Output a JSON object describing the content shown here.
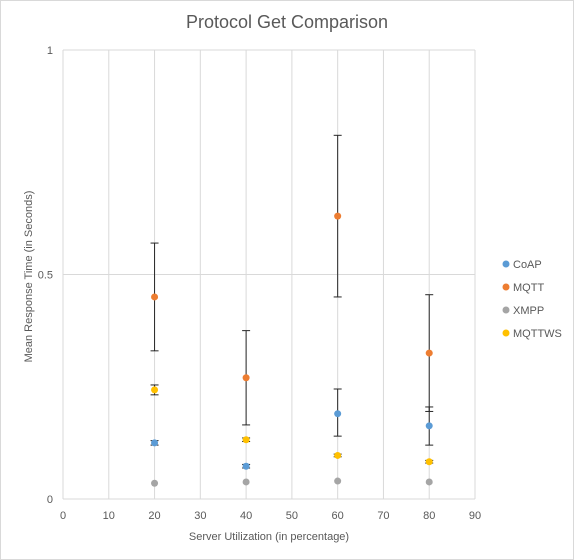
{
  "chart_data": {
    "type": "scatter",
    "title": "Protocol Get Comparison",
    "xlabel": "Server Utilization (in percentage)",
    "ylabel": "Mean Response Time (in Seconds)",
    "xlim": [
      0,
      90
    ],
    "ylim": [
      0,
      1
    ],
    "x_ticks": [
      0,
      10,
      20,
      30,
      40,
      50,
      60,
      70,
      80,
      90
    ],
    "y_ticks": [
      0,
      0.5,
      1
    ],
    "grid": "vertical and horizontal major gridlines",
    "legend_position": "right",
    "error_bars": true,
    "series": [
      {
        "name": "CoAP",
        "color": "#5b9bd5",
        "points": [
          {
            "x": 20,
            "y": 0.125,
            "lo": 0.12,
            "hi": 0.13
          },
          {
            "x": 40,
            "y": 0.073,
            "lo": 0.069,
            "hi": 0.077
          },
          {
            "x": 60,
            "y": 0.19,
            "lo": 0.14,
            "hi": 0.245
          },
          {
            "x": 80,
            "y": 0.163,
            "lo": 0.12,
            "hi": 0.205
          }
        ]
      },
      {
        "name": "MQTT",
        "color": "#ed7d31",
        "points": [
          {
            "x": 20,
            "y": 0.45,
            "lo": 0.33,
            "hi": 0.57
          },
          {
            "x": 40,
            "y": 0.27,
            "lo": 0.165,
            "hi": 0.375
          },
          {
            "x": 60,
            "y": 0.63,
            "lo": 0.45,
            "hi": 0.81
          },
          {
            "x": 80,
            "y": 0.325,
            "lo": 0.195,
            "hi": 0.455
          }
        ]
      },
      {
        "name": "XMPP",
        "color": "#a5a5a5",
        "points": [
          {
            "x": 20,
            "y": 0.035
          },
          {
            "x": 40,
            "y": 0.038
          },
          {
            "x": 60,
            "y": 0.04
          },
          {
            "x": 80,
            "y": 0.038
          }
        ]
      },
      {
        "name": "MQTTWS",
        "color": "#ffc000",
        "points": [
          {
            "x": 20,
            "y": 0.243,
            "lo": 0.232,
            "hi": 0.254
          },
          {
            "x": 40,
            "y": 0.132,
            "lo": 0.128,
            "hi": 0.136
          },
          {
            "x": 60,
            "y": 0.097,
            "lo": 0.094,
            "hi": 0.1
          },
          {
            "x": 80,
            "y": 0.083,
            "lo": 0.08,
            "hi": 0.086
          }
        ]
      }
    ]
  }
}
